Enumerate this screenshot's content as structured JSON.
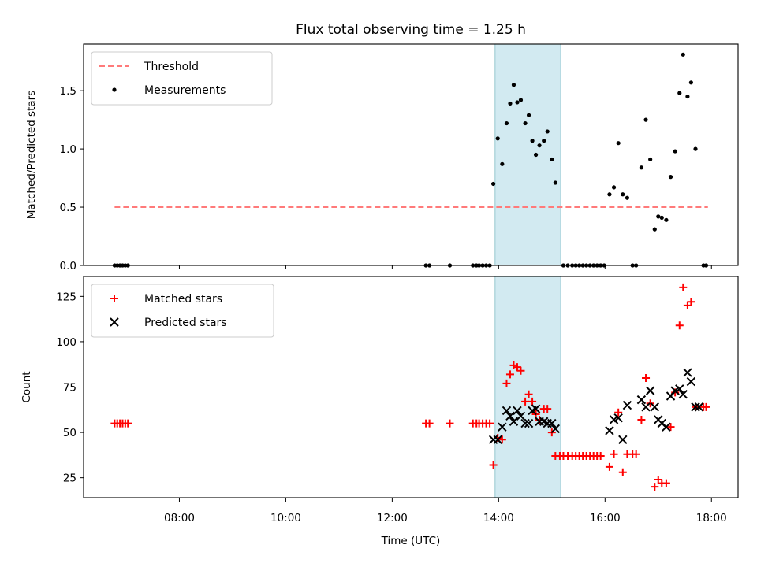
{
  "chart_data": [
    {
      "type": "scatter",
      "title": "Flux total observing time = 1.25 h",
      "xlabel": "",
      "ylabel": "Matched/Predicted stars",
      "xlim": [
        "06:12",
        "18:30"
      ],
      "ylim": [
        0,
        1.9
      ],
      "yticks": [
        0.0,
        0.5,
        1.0,
        1.5
      ],
      "ytick_labels": [
        "0.0",
        "0.5",
        "1.0",
        "1.5"
      ],
      "legend_position": "top-left",
      "highlight_span": {
        "x_start": "13:56",
        "x_end": "15:10",
        "color": "#add8e6"
      },
      "series": [
        {
          "name": "Threshold",
          "kind": "line",
          "style": "dashed",
          "color": "#ff7a7a",
          "x": [
            "06:47",
            "17:56"
          ],
          "y": [
            0.5,
            0.5
          ]
        },
        {
          "name": "Measurements",
          "kind": "scatter",
          "marker": "dot",
          "color": "#000000",
          "points": [
            [
              "06:47",
              0
            ],
            [
              "06:50",
              0
            ],
            [
              "06:53",
              0
            ],
            [
              "06:56",
              0
            ],
            [
              "06:59",
              0
            ],
            [
              "07:02",
              0
            ],
            [
              "12:38",
              0
            ],
            [
              "12:42",
              0
            ],
            [
              "13:05",
              0
            ],
            [
              "13:31",
              0
            ],
            [
              "13:35",
              0
            ],
            [
              "13:38",
              0
            ],
            [
              "13:42",
              0
            ],
            [
              "13:46",
              0
            ],
            [
              "13:50",
              0
            ],
            [
              "13:54",
              0.7
            ],
            [
              "13:59",
              1.09
            ],
            [
              "14:04",
              0.87
            ],
            [
              "14:09",
              1.22
            ],
            [
              "14:13",
              1.39
            ],
            [
              "14:17",
              1.55
            ],
            [
              "14:21",
              1.4
            ],
            [
              "14:25",
              1.42
            ],
            [
              "14:30",
              1.22
            ],
            [
              "14:34",
              1.29
            ],
            [
              "14:38",
              1.07
            ],
            [
              "14:42",
              0.95
            ],
            [
              "14:46",
              1.03
            ],
            [
              "14:51",
              1.07
            ],
            [
              "14:55",
              1.15
            ],
            [
              "15:00",
              0.91
            ],
            [
              "15:04",
              0.71
            ],
            [
              "15:13",
              0
            ],
            [
              "15:18",
              0
            ],
            [
              "15:23",
              0
            ],
            [
              "15:27",
              0
            ],
            [
              "15:31",
              0
            ],
            [
              "15:35",
              0
            ],
            [
              "15:39",
              0
            ],
            [
              "15:43",
              0
            ],
            [
              "15:47",
              0
            ],
            [
              "15:51",
              0
            ],
            [
              "15:55",
              0
            ],
            [
              "15:59",
              0
            ],
            [
              "16:05",
              0.61
            ],
            [
              "16:10",
              0.67
            ],
            [
              "16:15",
              1.05
            ],
            [
              "16:20",
              0.61
            ],
            [
              "16:25",
              0.58
            ],
            [
              "16:31",
              0
            ],
            [
              "16:35",
              0
            ],
            [
              "16:41",
              0.84
            ],
            [
              "16:46",
              1.25
            ],
            [
              "16:51",
              0.91
            ],
            [
              "16:56",
              0.31
            ],
            [
              "17:00",
              0.42
            ],
            [
              "17:04",
              0.41
            ],
            [
              "17:09",
              0.39
            ],
            [
              "17:14",
              0.76
            ],
            [
              "17:19",
              0.98
            ],
            [
              "17:24",
              1.48
            ],
            [
              "17:28",
              1.81
            ],
            [
              "17:33",
              1.45
            ],
            [
              "17:37",
              1.57
            ],
            [
              "17:42",
              1.0
            ],
            [
              "17:51",
              0
            ],
            [
              "17:54",
              0
            ]
          ]
        }
      ]
    },
    {
      "type": "scatter",
      "title": "",
      "xlabel": "Time (UTC)",
      "ylabel": "Count",
      "xlim": [
        "06:12",
        "18:30"
      ],
      "ylim": [
        14,
        136
      ],
      "xticks": [
        "08:00",
        "10:00",
        "12:00",
        "14:00",
        "16:00",
        "18:00"
      ],
      "yticks": [
        25,
        50,
        75,
        100,
        125
      ],
      "ytick_labels": [
        "25",
        "50",
        "75",
        "100",
        "125"
      ],
      "legend_position": "top-left",
      "highlight_span": {
        "x_start": "13:56",
        "x_end": "15:10",
        "color": "#add8e6"
      },
      "series": [
        {
          "name": "Matched stars",
          "kind": "scatter",
          "marker": "plus",
          "color": "#ff0000",
          "points": [
            [
              "06:47",
              55
            ],
            [
              "06:50",
              55
            ],
            [
              "06:53",
              55
            ],
            [
              "06:56",
              55
            ],
            [
              "06:59",
              55
            ],
            [
              "07:02",
              55
            ],
            [
              "12:38",
              55
            ],
            [
              "12:42",
              55
            ],
            [
              "13:05",
              55
            ],
            [
              "13:31",
              55
            ],
            [
              "13:35",
              55
            ],
            [
              "13:38",
              55
            ],
            [
              "13:42",
              55
            ],
            [
              "13:46",
              55
            ],
            [
              "13:50",
              55
            ],
            [
              "13:54",
              32
            ],
            [
              "13:59",
              47
            ],
            [
              "14:04",
              46
            ],
            [
              "14:09",
              77
            ],
            [
              "14:13",
              82
            ],
            [
              "14:17",
              87
            ],
            [
              "14:21",
              86
            ],
            [
              "14:25",
              84
            ],
            [
              "14:30",
              67
            ],
            [
              "14:34",
              71
            ],
            [
              "14:38",
              67
            ],
            [
              "14:42",
              60
            ],
            [
              "14:46",
              57
            ],
            [
              "14:51",
              63
            ],
            [
              "14:55",
              63
            ],
            [
              "15:00",
              50
            ],
            [
              "15:04",
              37
            ],
            [
              "15:09",
              37
            ],
            [
              "15:13",
              37
            ],
            [
              "15:18",
              37
            ],
            [
              "15:23",
              37
            ],
            [
              "15:27",
              37
            ],
            [
              "15:31",
              37
            ],
            [
              "15:35",
              37
            ],
            [
              "15:39",
              37
            ],
            [
              "15:43",
              37
            ],
            [
              "15:47",
              37
            ],
            [
              "15:51",
              37
            ],
            [
              "15:55",
              37
            ],
            [
              "16:05",
              31
            ],
            [
              "16:10",
              38
            ],
            [
              "16:15",
              61
            ],
            [
              "16:20",
              28
            ],
            [
              "16:25",
              38
            ],
            [
              "16:31",
              38
            ],
            [
              "16:35",
              38
            ],
            [
              "16:41",
              57
            ],
            [
              "16:46",
              80
            ],
            [
              "16:51",
              66
            ],
            [
              "16:56",
              20
            ],
            [
              "17:00",
              24
            ],
            [
              "17:04",
              22
            ],
            [
              "17:09",
              22
            ],
            [
              "17:14",
              53
            ],
            [
              "17:19",
              72
            ],
            [
              "17:24",
              109
            ],
            [
              "17:28",
              130
            ],
            [
              "17:33",
              120
            ],
            [
              "17:37",
              122
            ],
            [
              "17:42",
              64
            ],
            [
              "17:51",
              64
            ],
            [
              "17:54",
              64
            ]
          ]
        },
        {
          "name": "Predicted stars",
          "kind": "scatter",
          "marker": "x",
          "color": "#000000",
          "points": [
            [
              "13:54",
              46
            ],
            [
              "13:59",
              46
            ],
            [
              "14:04",
              53
            ],
            [
              "14:09",
              62
            ],
            [
              "14:13",
              59
            ],
            [
              "14:17",
              56
            ],
            [
              "14:21",
              62
            ],
            [
              "14:25",
              59
            ],
            [
              "14:30",
              55
            ],
            [
              "14:34",
              55
            ],
            [
              "14:38",
              62
            ],
            [
              "14:42",
              63
            ],
            [
              "14:46",
              56
            ],
            [
              "14:51",
              56
            ],
            [
              "14:55",
              55
            ],
            [
              "15:00",
              55
            ],
            [
              "15:04",
              52
            ],
            [
              "16:05",
              51
            ],
            [
              "16:10",
              57
            ],
            [
              "16:15",
              58
            ],
            [
              "16:20",
              46
            ],
            [
              "16:25",
              65
            ],
            [
              "16:41",
              68
            ],
            [
              "16:46",
              64
            ],
            [
              "16:51",
              73
            ],
            [
              "16:56",
              64
            ],
            [
              "17:00",
              57
            ],
            [
              "17:04",
              55
            ],
            [
              "17:09",
              53
            ],
            [
              "17:14",
              70
            ],
            [
              "17:19",
              73
            ],
            [
              "17:24",
              74
            ],
            [
              "17:28",
              71
            ],
            [
              "17:33",
              83
            ],
            [
              "17:37",
              78
            ],
            [
              "17:42",
              64
            ],
            [
              "17:46",
              64
            ]
          ]
        }
      ]
    }
  ]
}
